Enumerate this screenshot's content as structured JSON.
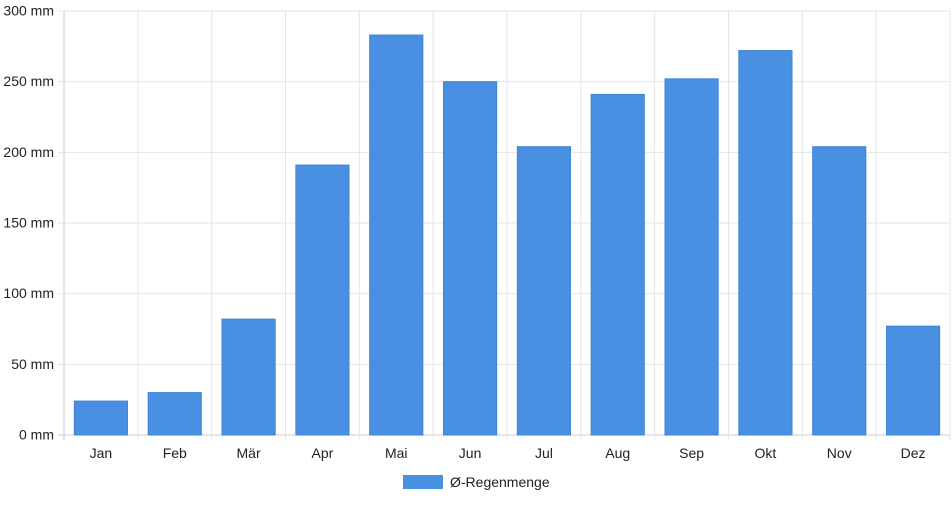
{
  "chart_data": {
    "type": "bar",
    "categories": [
      "Jan",
      "Feb",
      "Mär",
      "Apr",
      "Mai",
      "Jun",
      "Jul",
      "Aug",
      "Sep",
      "Okt",
      "Nov",
      "Dez"
    ],
    "series": [
      {
        "name": "Ø-Regenmenge",
        "values": [
          24,
          30,
          82,
          191,
          283,
          250,
          204,
          241,
          252,
          272,
          204,
          77
        ],
        "color": "#4a90e2"
      }
    ],
    "ylim": [
      0,
      300
    ],
    "yticks": [
      0,
      50,
      100,
      150,
      200,
      250,
      300
    ],
    "ytick_labels": [
      "0 mm",
      "50 mm",
      "100 mm",
      "150 mm",
      "200 mm",
      "250 mm",
      "300 mm"
    ],
    "grid": true,
    "legend_position": "bottom"
  }
}
